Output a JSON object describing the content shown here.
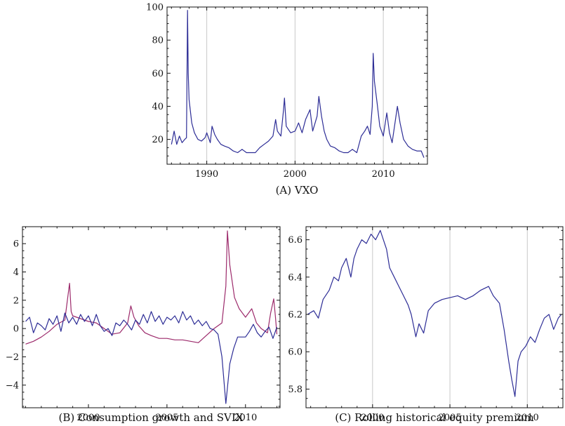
{
  "chart_data": [
    {
      "id": "A",
      "type": "line",
      "caption": "(A) VXO",
      "xlim": [
        1985.5,
        2015.0
      ],
      "ylim": [
        5,
        100
      ],
      "x_ticks": [
        1990,
        2000,
        2010
      ],
      "y_ticks": [
        20,
        40,
        60,
        80,
        100
      ],
      "grid_x": [
        1990,
        2000,
        2010
      ],
      "series": [
        {
          "color": "#2d2d96",
          "points": [
            [
              1986.0,
              17
            ],
            [
              1986.3,
              25
            ],
            [
              1986.6,
              17
            ],
            [
              1986.9,
              22
            ],
            [
              1987.2,
              18
            ],
            [
              1987.5,
              20
            ],
            [
              1987.7,
              21
            ],
            [
              1987.82,
              98
            ],
            [
              1987.9,
              60
            ],
            [
              1988.0,
              44
            ],
            [
              1988.3,
              30
            ],
            [
              1988.6,
              24
            ],
            [
              1989.0,
              20
            ],
            [
              1989.4,
              19
            ],
            [
              1989.8,
              21
            ],
            [
              1990.0,
              24
            ],
            [
              1990.4,
              18
            ],
            [
              1990.6,
              28
            ],
            [
              1990.9,
              23
            ],
            [
              1991.2,
              20
            ],
            [
              1991.6,
              17
            ],
            [
              1992.0,
              16
            ],
            [
              1992.5,
              15
            ],
            [
              1993.0,
              13
            ],
            [
              1993.5,
              12
            ],
            [
              1994.0,
              14
            ],
            [
              1994.5,
              12
            ],
            [
              1995.0,
              12
            ],
            [
              1995.5,
              12
            ],
            [
              1996.0,
              15
            ],
            [
              1996.5,
              17
            ],
            [
              1997.0,
              19
            ],
            [
              1997.5,
              22
            ],
            [
              1997.8,
              32
            ],
            [
              1998.0,
              25
            ],
            [
              1998.4,
              22
            ],
            [
              1998.7,
              38
            ],
            [
              1998.8,
              45
            ],
            [
              1999.0,
              28
            ],
            [
              1999.5,
              24
            ],
            [
              2000.0,
              25
            ],
            [
              2000.4,
              30
            ],
            [
              2000.8,
              24
            ],
            [
              2001.2,
              32
            ],
            [
              2001.7,
              38
            ],
            [
              2002.0,
              25
            ],
            [
              2002.5,
              34
            ],
            [
              2002.7,
              46
            ],
            [
              2003.0,
              34
            ],
            [
              2003.3,
              25
            ],
            [
              2003.6,
              20
            ],
            [
              2004.0,
              16
            ],
            [
              2004.5,
              15
            ],
            [
              2005.0,
              13
            ],
            [
              2005.5,
              12
            ],
            [
              2006.0,
              12
            ],
            [
              2006.5,
              14
            ],
            [
              2007.0,
              12
            ],
            [
              2007.5,
              22
            ],
            [
              2007.9,
              25
            ],
            [
              2008.2,
              28
            ],
            [
              2008.5,
              23
            ],
            [
              2008.75,
              40
            ],
            [
              2008.85,
              72
            ],
            [
              2009.0,
              55
            ],
            [
              2009.3,
              42
            ],
            [
              2009.6,
              28
            ],
            [
              2010.0,
              22
            ],
            [
              2010.4,
              36
            ],
            [
              2010.7,
              24
            ],
            [
              2011.0,
              18
            ],
            [
              2011.6,
              40
            ],
            [
              2011.9,
              30
            ],
            [
              2012.3,
              20
            ],
            [
              2012.8,
              16
            ],
            [
              2013.3,
              14
            ],
            [
              2013.8,
              13
            ],
            [
              2014.3,
              13
            ],
            [
              2014.6,
              9
            ]
          ]
        }
      ]
    },
    {
      "id": "B",
      "type": "line",
      "caption": "(B) Consumption growth and SVIX",
      "xlim": [
        1995.8,
        2012.2
      ],
      "ylim": [
        -5.6,
        7.2
      ],
      "x_ticks": [
        2000,
        2005,
        2010
      ],
      "y_ticks": [
        -4,
        -2,
        0,
        2,
        4,
        6
      ],
      "grid_x": [],
      "series": [
        {
          "color": "#9c2a6b",
          "points": [
            [
              1996.0,
              -1.1
            ],
            [
              1996.5,
              -0.9
            ],
            [
              1997.0,
              -0.6
            ],
            [
              1997.5,
              -0.2
            ],
            [
              1998.0,
              0.3
            ],
            [
              1998.5,
              0.6
            ],
            [
              1998.8,
              3.2
            ],
            [
              1998.9,
              1.2
            ],
            [
              1999.0,
              0.9
            ],
            [
              1999.5,
              0.7
            ],
            [
              2000.0,
              0.5
            ],
            [
              2000.5,
              0.4
            ],
            [
              2001.0,
              0.0
            ],
            [
              2001.5,
              -0.4
            ],
            [
              2002.0,
              -0.3
            ],
            [
              2002.5,
              0.4
            ],
            [
              2002.7,
              1.6
            ],
            [
              2002.9,
              0.8
            ],
            [
              2003.2,
              0.2
            ],
            [
              2003.6,
              -0.3
            ],
            [
              2004.0,
              -0.5
            ],
            [
              2004.5,
              -0.7
            ],
            [
              2005.0,
              -0.7
            ],
            [
              2005.5,
              -0.8
            ],
            [
              2006.0,
              -0.8
            ],
            [
              2006.5,
              -0.9
            ],
            [
              2007.0,
              -1.0
            ],
            [
              2007.5,
              -0.5
            ],
            [
              2008.0,
              0.0
            ],
            [
              2008.5,
              0.4
            ],
            [
              2008.75,
              3.0
            ],
            [
              2008.85,
              6.9
            ],
            [
              2009.0,
              4.5
            ],
            [
              2009.3,
              2.2
            ],
            [
              2009.6,
              1.4
            ],
            [
              2010.0,
              0.8
            ],
            [
              2010.4,
              1.4
            ],
            [
              2010.7,
              0.4
            ],
            [
              2011.0,
              0.0
            ],
            [
              2011.4,
              -0.3
            ],
            [
              2011.6,
              1.1
            ],
            [
              2011.8,
              2.1
            ],
            [
              2011.9,
              0.9
            ],
            [
              2012.0,
              -0.4
            ]
          ]
        },
        {
          "color": "#2d2d96",
          "points": [
            [
              1996.0,
              0.5
            ],
            [
              1996.25,
              0.8
            ],
            [
              1996.5,
              -0.3
            ],
            [
              1996.75,
              0.4
            ],
            [
              1997.0,
              0.2
            ],
            [
              1997.25,
              -0.1
            ],
            [
              1997.5,
              0.7
            ],
            [
              1997.75,
              0.3
            ],
            [
              1998.0,
              0.9
            ],
            [
              1998.25,
              -0.2
            ],
            [
              1998.5,
              1.1
            ],
            [
              1998.75,
              0.4
            ],
            [
              1999.0,
              0.8
            ],
            [
              1999.25,
              0.3
            ],
            [
              1999.5,
              1.0
            ],
            [
              1999.75,
              0.5
            ],
            [
              2000.0,
              0.9
            ],
            [
              2000.25,
              0.2
            ],
            [
              2000.5,
              1.0
            ],
            [
              2000.75,
              0.2
            ],
            [
              2001.0,
              -0.2
            ],
            [
              2001.25,
              0.0
            ],
            [
              2001.5,
              -0.5
            ],
            [
              2001.75,
              0.4
            ],
            [
              2002.0,
              0.2
            ],
            [
              2002.25,
              0.6
            ],
            [
              2002.5,
              0.3
            ],
            [
              2002.75,
              -0.1
            ],
            [
              2003.0,
              0.6
            ],
            [
              2003.25,
              0.3
            ],
            [
              2003.5,
              1.0
            ],
            [
              2003.75,
              0.4
            ],
            [
              2004.0,
              1.2
            ],
            [
              2004.25,
              0.5
            ],
            [
              2004.5,
              0.9
            ],
            [
              2004.75,
              0.3
            ],
            [
              2005.0,
              0.8
            ],
            [
              2005.25,
              0.6
            ],
            [
              2005.5,
              0.9
            ],
            [
              2005.75,
              0.4
            ],
            [
              2006.0,
              1.2
            ],
            [
              2006.25,
              0.6
            ],
            [
              2006.5,
              0.9
            ],
            [
              2006.75,
              0.3
            ],
            [
              2007.0,
              0.6
            ],
            [
              2007.25,
              0.2
            ],
            [
              2007.5,
              0.5
            ],
            [
              2007.75,
              0.0
            ],
            [
              2008.0,
              -0.1
            ],
            [
              2008.25,
              -0.4
            ],
            [
              2008.5,
              -2.0
            ],
            [
              2008.75,
              -5.3
            ],
            [
              2009.0,
              -2.5
            ],
            [
              2009.25,
              -1.4
            ],
            [
              2009.5,
              -0.6
            ],
            [
              2009.75,
              -0.6
            ],
            [
              2010.0,
              -0.6
            ],
            [
              2010.25,
              -0.2
            ],
            [
              2010.5,
              0.3
            ],
            [
              2010.75,
              -0.3
            ],
            [
              2011.0,
              -0.6
            ],
            [
              2011.25,
              -0.2
            ],
            [
              2011.5,
              0.1
            ],
            [
              2011.75,
              -0.7
            ],
            [
              2012.0,
              0.1
            ]
          ]
        }
      ]
    },
    {
      "id": "C",
      "type": "line",
      "caption": "(C) Rolling historical equity premium",
      "xlim": [
        1995.7,
        2012.3
      ],
      "ylim": [
        5.7,
        6.67
      ],
      "x_ticks": [
        2000,
        2005,
        2010
      ],
      "y_ticks": [
        5.8,
        6.0,
        6.2,
        6.4,
        6.6
      ],
      "y_tick_labels": [
        "5.8",
        "6.0",
        "6.2",
        "6.4",
        "6.6"
      ],
      "grid_x": [
        2000,
        2005,
        2010
      ],
      "series": [
        {
          "color": "#2d2d96",
          "points": [
            [
              1995.8,
              6.2
            ],
            [
              1996.2,
              6.22
            ],
            [
              1996.5,
              6.18
            ],
            [
              1996.8,
              6.28
            ],
            [
              1997.2,
              6.33
            ],
            [
              1997.5,
              6.4
            ],
            [
              1997.8,
              6.38
            ],
            [
              1998.0,
              6.45
            ],
            [
              1998.3,
              6.5
            ],
            [
              1998.6,
              6.4
            ],
            [
              1998.8,
              6.5
            ],
            [
              1999.0,
              6.55
            ],
            [
              1999.3,
              6.6
            ],
            [
              1999.6,
              6.58
            ],
            [
              1999.9,
              6.63
            ],
            [
              2000.2,
              6.6
            ],
            [
              2000.5,
              6.65
            ],
            [
              2000.7,
              6.6
            ],
            [
              2000.9,
              6.55
            ],
            [
              2001.1,
              6.45
            ],
            [
              2001.4,
              6.4
            ],
            [
              2001.7,
              6.35
            ],
            [
              2002.0,
              6.3
            ],
            [
              2002.3,
              6.25
            ],
            [
              2002.5,
              6.2
            ],
            [
              2002.8,
              6.08
            ],
            [
              2003.0,
              6.15
            ],
            [
              2003.3,
              6.1
            ],
            [
              2003.6,
              6.22
            ],
            [
              2004.0,
              6.26
            ],
            [
              2004.5,
              6.28
            ],
            [
              2005.0,
              6.29
            ],
            [
              2005.5,
              6.3
            ],
            [
              2006.0,
              6.28
            ],
            [
              2006.5,
              6.3
            ],
            [
              2007.0,
              6.33
            ],
            [
              2007.5,
              6.35
            ],
            [
              2007.8,
              6.3
            ],
            [
              2008.2,
              6.26
            ],
            [
              2008.5,
              6.12
            ],
            [
              2008.8,
              5.95
            ],
            [
              2009.0,
              5.85
            ],
            [
              2009.2,
              5.76
            ],
            [
              2009.4,
              5.95
            ],
            [
              2009.6,
              6.0
            ],
            [
              2009.9,
              6.03
            ],
            [
              2010.2,
              6.08
            ],
            [
              2010.5,
              6.05
            ],
            [
              2010.8,
              6.12
            ],
            [
              2011.1,
              6.18
            ],
            [
              2011.4,
              6.2
            ],
            [
              2011.7,
              6.12
            ],
            [
              2012.0,
              6.18
            ],
            [
              2012.2,
              6.2
            ]
          ]
        }
      ]
    }
  ]
}
